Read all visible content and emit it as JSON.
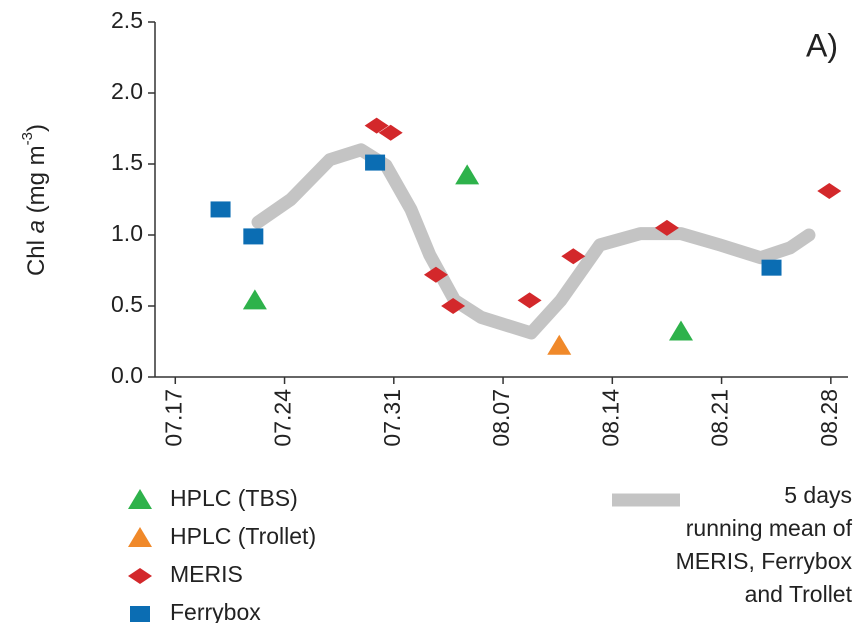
{
  "chart_data": {
    "type": "scatter",
    "ylabel_parts": [
      "Chl ",
      "a",
      " (mg m",
      "-3",
      ")"
    ],
    "annotation": "A)",
    "xlim": [
      196.7,
      241.1
    ],
    "xticks": [
      {
        "value": 198,
        "label": "07.17"
      },
      {
        "value": 205,
        "label": "07.24"
      },
      {
        "value": 212,
        "label": "07.31"
      },
      {
        "value": 219,
        "label": "08.07"
      },
      {
        "value": 226,
        "label": "08.14"
      },
      {
        "value": 233,
        "label": "08.21"
      },
      {
        "value": 240,
        "label": "08.28"
      }
    ],
    "ylim": [
      0,
      2.5
    ],
    "yticks": [
      {
        "value": 0,
        "label": "0.0"
      },
      0.5,
      {
        "value": 1,
        "label": "1.0"
      },
      1.5,
      {
        "value": 2,
        "label": "2.0"
      },
      2.5
    ],
    "series": [
      {
        "name": "5 days\nrunning mean of\nMERIS, Ferrybox\nand Trollet",
        "mode": "line",
        "color": "#c4c4c4",
        "x": [
          203.3,
          205.4,
          207.9,
          209.9,
          211.5,
          213.1,
          214.3,
          215.9,
          217.6,
          220.8,
          222.7,
          225.2,
          227.8,
          230.4,
          232.9,
          235.5,
          237.4,
          238.6
        ],
        "values": [
          1.09,
          1.25,
          1.53,
          1.6,
          1.49,
          1.18,
          0.86,
          0.54,
          0.42,
          0.31,
          0.54,
          0.93,
          1.01,
          1.01,
          0.93,
          0.84,
          0.91,
          1.0
        ]
      },
      {
        "name": "HPLC (TBS)",
        "mode": "marker",
        "marker": "triangle",
        "color": "#2eb24b",
        "x": [
          203.1,
          216.7,
          230.4
        ],
        "values": [
          0.54,
          1.42,
          0.32
        ]
      },
      {
        "name": "HPLC (Trollet)",
        "mode": "marker",
        "marker": "triangle",
        "color": "#f0892a",
        "x": [
          222.6
        ],
        "values": [
          0.22
        ]
      },
      {
        "name": "MERIS",
        "mode": "marker",
        "marker": "diamond",
        "color": "#d3282b",
        "x": [
          210.9,
          211.8,
          214.7,
          215.8,
          220.7,
          223.5,
          229.5,
          239.9
        ],
        "values": [
          1.77,
          1.72,
          0.72,
          0.5,
          0.54,
          0.85,
          1.05,
          1.31
        ]
      },
      {
        "name": "Ferrybox",
        "mode": "marker",
        "marker": "square",
        "color": "#0b6db3",
        "x": [
          200.9,
          203.0,
          210.8,
          236.2
        ],
        "values": [
          1.18,
          0.99,
          1.51,
          0.77
        ]
      }
    ]
  }
}
